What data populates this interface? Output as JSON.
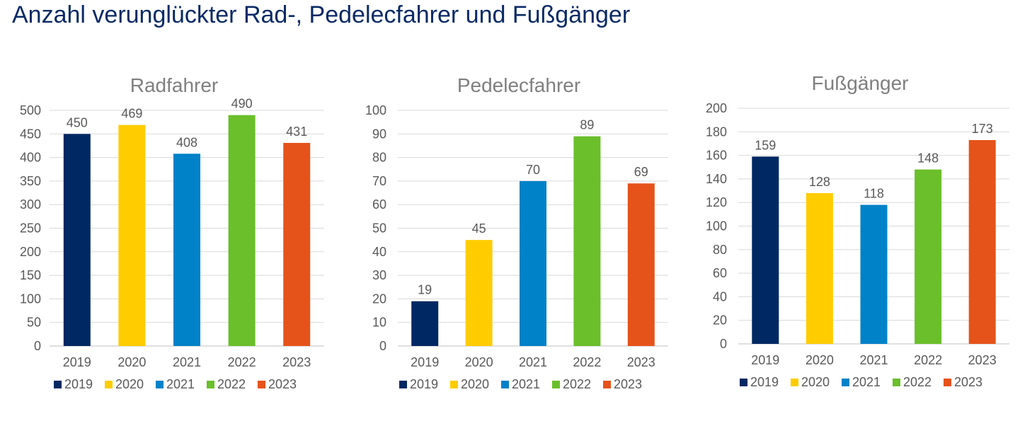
{
  "page": {
    "title": "Anzahl verunglückter Rad-, Pedelecfahrer und Fußgänger"
  },
  "colors": {
    "2019": "#002863",
    "2020": "#FFCC00",
    "2021": "#0082C8",
    "2022": "#6ABF2A",
    "2023": "#E5531A",
    "title_text": "#0a2a66",
    "chart_text": "#595959",
    "chart_title": "#7f7f7f",
    "gridline": "#d9d9d9"
  },
  "chart_data": [
    {
      "type": "bar",
      "title": "Radfahrer",
      "categories": [
        "2019",
        "2020",
        "2021",
        "2022",
        "2023"
      ],
      "values": [
        450,
        469,
        408,
        490,
        431
      ],
      "ylim": [
        0,
        500
      ],
      "yticks": [
        0,
        50,
        100,
        150,
        200,
        250,
        300,
        350,
        400,
        450,
        500
      ],
      "xlabel": "",
      "ylabel": "",
      "grid": true,
      "data_labels": true,
      "legend": [
        "2019",
        "2020",
        "2021",
        "2022",
        "2023"
      ],
      "legend_position": "bottom"
    },
    {
      "type": "bar",
      "title": "Pedelecfahrer",
      "categories": [
        "2019",
        "2020",
        "2021",
        "2022",
        "2023"
      ],
      "values": [
        19,
        45,
        70,
        89,
        69
      ],
      "ylim": [
        0,
        100
      ],
      "yticks": [
        0,
        10,
        20,
        30,
        40,
        50,
        60,
        70,
        80,
        90,
        100
      ],
      "xlabel": "",
      "ylabel": "",
      "grid": true,
      "data_labels": true,
      "legend": [
        "2019",
        "2020",
        "2021",
        "2022",
        "2023"
      ],
      "legend_position": "bottom"
    },
    {
      "type": "bar",
      "title": "Fußgänger",
      "categories": [
        "2019",
        "2020",
        "2021",
        "2022",
        "2023"
      ],
      "values": [
        159,
        128,
        118,
        148,
        173
      ],
      "ylim": [
        0,
        200
      ],
      "yticks": [
        0,
        20,
        40,
        60,
        80,
        100,
        120,
        140,
        160,
        180,
        200
      ],
      "xlabel": "",
      "ylabel": "",
      "grid": true,
      "data_labels": true,
      "legend": [
        "2019",
        "2020",
        "2021",
        "2022",
        "2023"
      ],
      "legend_position": "bottom"
    }
  ]
}
